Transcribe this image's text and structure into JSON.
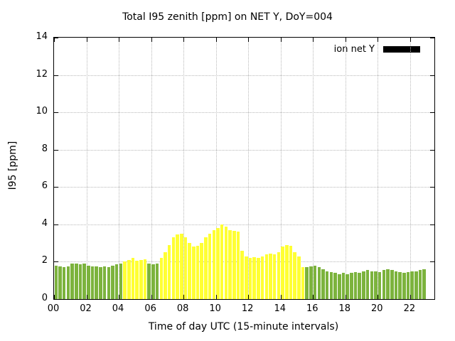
{
  "chart_data": {
    "type": "bar",
    "title": "Total I95 zenith [ppm] on NET Y, DoY=004",
    "xlabel": "Time of day UTC (15-minute intervals)",
    "ylabel": "I95 [ppm]",
    "legend_label": "ion net Y",
    "legend_swatch_color": "#000000",
    "xlim": [
      0,
      23.5
    ],
    "ylim": [
      0,
      14
    ],
    "grid": true,
    "legend_position": "top-right-inside",
    "yticks": {
      "values": [
        0,
        2,
        4,
        6,
        8,
        10,
        12,
        14
      ],
      "labels": [
        "0",
        "2",
        "4",
        "6",
        "8",
        "10",
        "12",
        "14"
      ]
    },
    "xticks": {
      "values": [
        0,
        2,
        4,
        6,
        8,
        10,
        12,
        14,
        16,
        18,
        20,
        22
      ],
      "labels": [
        "00",
        "02",
        "04",
        "06",
        "08",
        "10",
        "12",
        "14",
        "16",
        "18",
        "20",
        "22"
      ]
    },
    "x_start": 0,
    "x_step": 0.25,
    "bar_color_map": {
      "g": "#7cb33d",
      "y": "#ffff33"
    },
    "bar_colors": [
      "g",
      "g",
      "g",
      "g",
      "g",
      "g",
      "g",
      "g",
      "g",
      "g",
      "g",
      "g",
      "g",
      "g",
      "g",
      "g",
      "g",
      "y",
      "y",
      "y",
      "y",
      "y",
      "y",
      "g",
      "g",
      "g",
      "y",
      "y",
      "y",
      "y",
      "y",
      "y",
      "y",
      "y",
      "y",
      "y",
      "y",
      "y",
      "y",
      "y",
      "y",
      "y",
      "y",
      "y",
      "y",
      "y",
      "y",
      "y",
      "y",
      "y",
      "y",
      "y",
      "y",
      "y",
      "y",
      "y",
      "y",
      "y",
      "y",
      "y",
      "y",
      "y",
      "g",
      "g",
      "g",
      "g",
      "g",
      "g",
      "g",
      "g",
      "g",
      "g",
      "g",
      "g",
      "g",
      "g",
      "g",
      "g",
      "g",
      "g",
      "g",
      "g",
      "g",
      "g",
      "g",
      "g",
      "g",
      "g",
      "g",
      "g",
      "g",
      "g",
      "g"
    ],
    "values": [
      1.8,
      1.75,
      1.7,
      1.75,
      1.9,
      1.9,
      1.85,
      1.9,
      1.8,
      1.75,
      1.75,
      1.7,
      1.75,
      1.7,
      1.8,
      1.85,
      1.9,
      2.0,
      2.1,
      2.2,
      2.05,
      2.1,
      2.15,
      1.9,
      1.85,
      1.9,
      2.2,
      2.5,
      2.9,
      3.3,
      3.45,
      3.5,
      3.3,
      3.0,
      2.8,
      2.85,
      3.0,
      3.3,
      3.5,
      3.7,
      3.8,
      4.0,
      3.9,
      3.7,
      3.65,
      3.6,
      2.6,
      2.3,
      2.2,
      2.25,
      2.2,
      2.3,
      2.4,
      2.45,
      2.4,
      2.5,
      2.8,
      2.9,
      2.85,
      2.5,
      2.3,
      1.7,
      1.7,
      1.75,
      1.8,
      1.7,
      1.6,
      1.5,
      1.45,
      1.4,
      1.35,
      1.4,
      1.35,
      1.4,
      1.45,
      1.4,
      1.5,
      1.55,
      1.5,
      1.5,
      1.45,
      1.55,
      1.6,
      1.55,
      1.5,
      1.45,
      1.4,
      1.45,
      1.5,
      1.5,
      1.55,
      1.6
    ]
  }
}
